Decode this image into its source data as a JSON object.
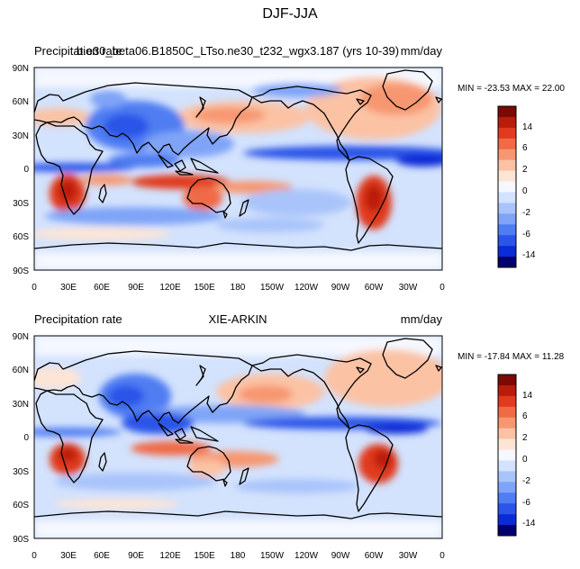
{
  "figure_title": "DJF-JJA",
  "colorbar_levels": [
    "14",
    "6",
    "2",
    "0",
    "-2",
    "-6",
    "-14"
  ],
  "colors": {
    "scale": [
      "#00006e",
      "#0a2bd6",
      "#2a55e8",
      "#4f7df2",
      "#7fa4f7",
      "#a9c4fa",
      "#d3e2fd",
      "#f5f8ff",
      "#fde5d6",
      "#fbc2a4",
      "#f79771",
      "#f06a46",
      "#e03b1e",
      "#b91c0b",
      "#7a0a03"
    ],
    "land_line": "#000000"
  },
  "panels": [
    {
      "left_title": "Precipitation rate",
      "center_title": "b.e30_beta06.B1850C_LTso.ne30_t232_wgx3.187 (yrs 10-39)",
      "right_title": "mm/day",
      "stats": "MIN = -23.53 MAX =  22.00",
      "lat_ticks": [
        "90N",
        "60N",
        "30N",
        "0",
        "30S",
        "60S",
        "90S"
      ],
      "lon_ticks": [
        "0",
        "30E",
        "60E",
        "90E",
        "120E",
        "150E",
        "180",
        "150W",
        "120W",
        "90W",
        "60W",
        "30W",
        "0"
      ]
    },
    {
      "left_title": "Precipitation rate",
      "center_title": "XIE-ARKIN",
      "right_title": "mm/day",
      "stats": "MIN = -17.84 MAX =  11.28",
      "lat_ticks": [
        "90N",
        "60N",
        "30N",
        "0",
        "30S",
        "60S",
        "90S"
      ],
      "lon_ticks": [
        "0",
        "30E",
        "60E",
        "90E",
        "120E",
        "150E",
        "180",
        "150W",
        "120W",
        "90W",
        "60W",
        "30W",
        "0"
      ]
    }
  ]
}
